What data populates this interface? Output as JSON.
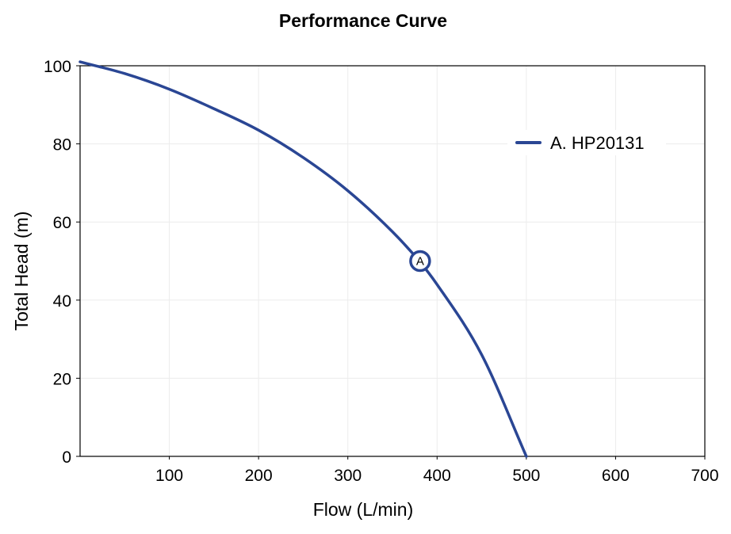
{
  "chart_data": {
    "type": "line",
    "title": "Performance Curve",
    "xlabel": "Flow (L/min)",
    "ylabel": "Total Head (m)",
    "xlim": [
      0,
      700
    ],
    "ylim": [
      0,
      100
    ],
    "xticks": [
      100,
      200,
      300,
      400,
      500,
      600,
      700
    ],
    "yticks": [
      0,
      20,
      40,
      60,
      80,
      100
    ],
    "grid": true,
    "legend_position": "top-right",
    "series": [
      {
        "name": "A. HP20131",
        "color": "#2a4694",
        "x": [
          0,
          50,
          100,
          150,
          200,
          250,
          300,
          350,
          380,
          400,
          450,
          500
        ],
        "y": [
          101,
          98,
          94,
          89,
          83.5,
          76.5,
          68,
          57.5,
          50,
          44,
          26,
          0
        ]
      }
    ],
    "annotations": [
      {
        "label": "A",
        "x": 381,
        "y": 50,
        "series": "A. HP20131"
      }
    ]
  }
}
